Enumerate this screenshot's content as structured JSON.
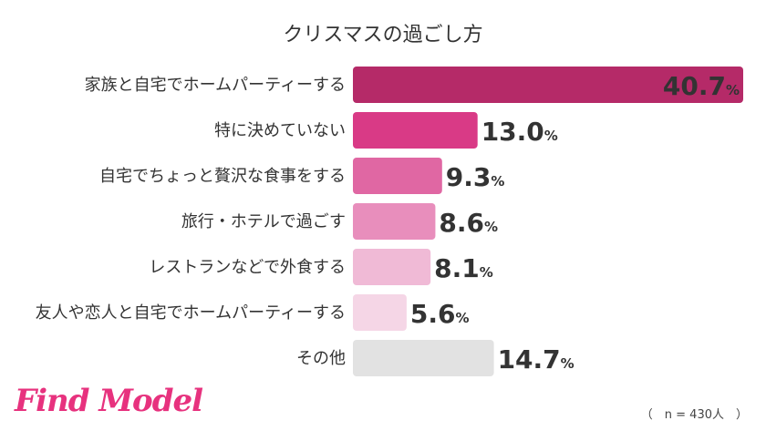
{
  "chart_data": {
    "type": "bar",
    "orientation": "horizontal",
    "title": "クリスマスの過ごし方",
    "categories": [
      "家族と自宅でホームパーティーする",
      "特に決めていない",
      "自宅でちょっと贅沢な食事をする",
      "旅行・ホテルで過ごす",
      "レストランなどで外食する",
      "友人や恋人と自宅でホームパーティーする",
      "その他"
    ],
    "values": [
      40.7,
      13.0,
      9.3,
      8.6,
      8.1,
      5.6,
      14.7
    ],
    "value_labels": [
      "40.7",
      "13.0",
      "9.3",
      "8.6",
      "8.1",
      "5.6",
      "14.7"
    ],
    "unit": "%",
    "bar_colors": [
      "#b52a68",
      "#d93a86",
      "#e067a3",
      "#e88ebc",
      "#f0bad6",
      "#f5d6e6",
      "#e2e2e2"
    ],
    "legend": "none",
    "grid": false
  },
  "footer": {
    "logo": "Find Model",
    "note": "（　n = 430人　）"
  }
}
